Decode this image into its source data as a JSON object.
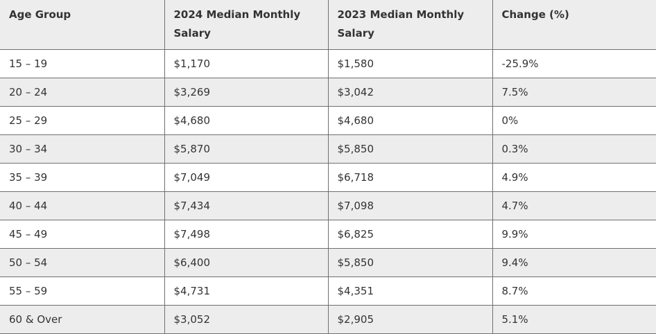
{
  "table": {
    "headers": [
      "Age Group",
      "2024 Median Monthly Salary",
      "2023 Median Monthly Salary",
      "Change (%)"
    ],
    "rows": [
      [
        "15 – 19",
        "$1,170",
        "$1,580",
        "-25.9%"
      ],
      [
        "20 – 24",
        "$3,269",
        "$3,042",
        "7.5%"
      ],
      [
        "25 – 29",
        "$4,680",
        "$4,680",
        "0%"
      ],
      [
        "30 – 34",
        "$5,870",
        "$5,850",
        "0.3%"
      ],
      [
        "35 – 39",
        "$7,049",
        "$6,718",
        "4.9%"
      ],
      [
        "40 – 44",
        "$7,434",
        "$7,098",
        "4.7%"
      ],
      [
        "45 – 49",
        "$7,498",
        "$6,825",
        "9.9%"
      ],
      [
        "50 – 54",
        "$6,400",
        "$5,850",
        "9.4%"
      ],
      [
        "55 – 59",
        "$4,731",
        "$4,351",
        "8.7%"
      ],
      [
        "60 & Over",
        "$3,052",
        "$2,905",
        "5.1%"
      ]
    ]
  }
}
